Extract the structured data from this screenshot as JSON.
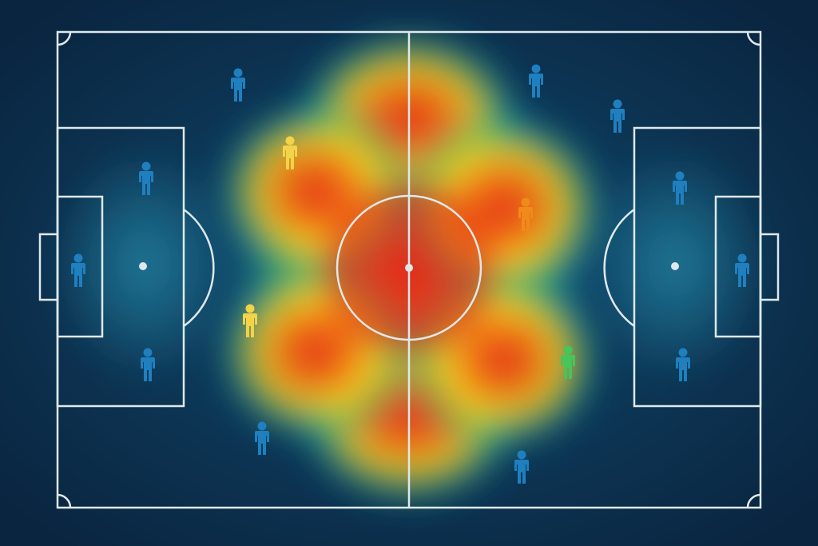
{
  "colors": {
    "background_dark": "#0a2540",
    "background_mid": "#0f4a6e",
    "field_line": "#dfe8ec",
    "player_cold": "#1f7fbf",
    "player_warm": "#f08a1c",
    "player_mid": "#f2d34a",
    "heat_low": "#1a8fb0",
    "heat_green": "#47c45a",
    "heat_yellow": "#f5d21e",
    "heat_orange": "#f47a14",
    "heat_high": "#e3261a"
  },
  "heatmap": {
    "type": "heatmap",
    "description_hidden": true,
    "hotspots": [
      {
        "x": 0.5,
        "y": 0.5,
        "intensity": 1.0
      },
      {
        "x": 0.5,
        "y": 0.22,
        "intensity": 0.9
      },
      {
        "x": 0.5,
        "y": 0.78,
        "intensity": 0.9
      },
      {
        "x": 0.38,
        "y": 0.35,
        "intensity": 0.7
      },
      {
        "x": 0.38,
        "y": 0.65,
        "intensity": 0.7
      },
      {
        "x": 0.62,
        "y": 0.38,
        "intensity": 0.75
      },
      {
        "x": 0.62,
        "y": 0.66,
        "intensity": 0.7
      }
    ]
  },
  "players": [
    {
      "id": "p1",
      "tone": "cold"
    },
    {
      "id": "p2",
      "tone": "cold"
    },
    {
      "id": "p3",
      "tone": "cold"
    },
    {
      "id": "p4",
      "tone": "cold"
    },
    {
      "id": "p5",
      "tone": "cold"
    },
    {
      "id": "p6",
      "tone": "mid"
    },
    {
      "id": "p7",
      "tone": "mid"
    },
    {
      "id": "p8",
      "tone": "cold"
    },
    {
      "id": "p9",
      "tone": "cold"
    },
    {
      "id": "p10",
      "tone": "warm"
    },
    {
      "id": "p11",
      "tone": "cold"
    },
    {
      "id": "p12",
      "tone": "cold"
    },
    {
      "id": "p13",
      "tone": "cold"
    },
    {
      "id": "p14",
      "tone": "cold"
    },
    {
      "id": "p15",
      "tone": "green"
    },
    {
      "id": "p16",
      "tone": "cold"
    }
  ]
}
